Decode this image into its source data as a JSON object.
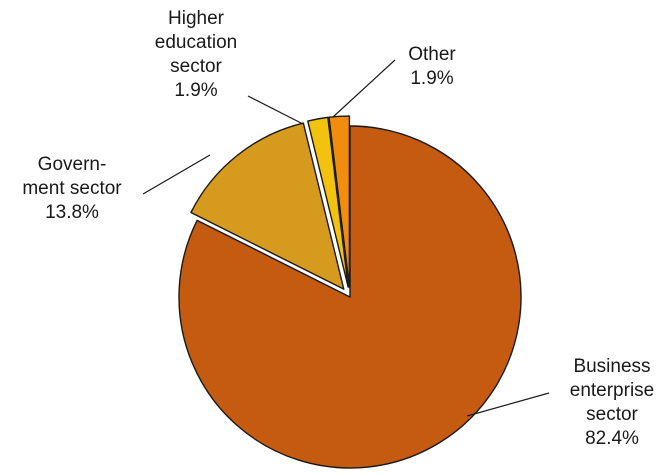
{
  "chart_data": {
    "type": "pie",
    "title": "",
    "slices": [
      {
        "label": [
          "Business",
          "enterprise",
          "sector"
        ],
        "value": 82.4,
        "value_label": "82.4%",
        "color": "#C55A11",
        "exploded": false
      },
      {
        "label": [
          "Govern-",
          "ment sector"
        ],
        "value": 13.8,
        "value_label": "13.8%",
        "color": "#D69A1E",
        "exploded": true
      },
      {
        "label": [
          "Higher",
          "education",
          "sector"
        ],
        "value": 1.9,
        "value_label": "1.9%",
        "color": "#F2C20F",
        "exploded": true
      },
      {
        "label": [
          "Other"
        ],
        "value": 1.9,
        "value_label": "1.9%",
        "color": "#F28C0F",
        "exploded": true
      }
    ],
    "stroke_color": "#1a1a1a",
    "legend": "none"
  }
}
